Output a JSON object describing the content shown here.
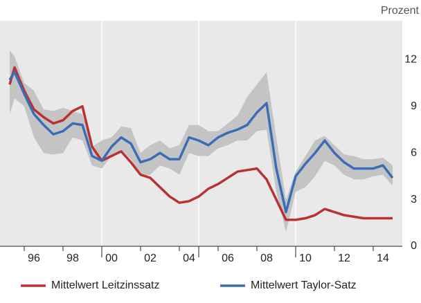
{
  "chart_data": {
    "type": "line",
    "y_axis_label": "Prozent",
    "x": [
      1995.25,
      1995.5,
      1996,
      1996.5,
      1997,
      1997.5,
      1998,
      1998.5,
      1999,
      1999.5,
      2000,
      2000.5,
      2001,
      2001.5,
      2002,
      2002.5,
      2003,
      2003.5,
      2004,
      2004.5,
      2005,
      2005.5,
      2006,
      2006.5,
      2007,
      2007.5,
      2008,
      2008.5,
      2009,
      2009.5,
      2010,
      2010.5,
      2011,
      2011.5,
      2012,
      2012.5,
      2013,
      2013.5,
      2014,
      2014.5,
      2015
    ],
    "series": [
      {
        "name": "Mittelwert Leitzinssatz",
        "color": "#b83232",
        "values": [
          10.4,
          11.5,
          10.0,
          8.8,
          8.3,
          7.9,
          8.1,
          8.7,
          9.0,
          6.4,
          5.5,
          5.8,
          6.1,
          5.4,
          4.6,
          4.4,
          3.8,
          3.2,
          2.8,
          2.9,
          3.2,
          3.7,
          4.0,
          4.4,
          4.8,
          4.9,
          5.0,
          4.3,
          3.0,
          1.7,
          1.7,
          1.8,
          2.0,
          2.4,
          2.2,
          2.0,
          1.9,
          1.8,
          1.8,
          1.8,
          1.8
        ]
      },
      {
        "name": "Mittelwert Taylor-Satz",
        "color": "#3a6db5",
        "values": [
          10.7,
          11.2,
          9.8,
          8.5,
          7.8,
          7.2,
          7.4,
          7.9,
          7.8,
          5.8,
          5.5,
          6.4,
          7.0,
          6.6,
          5.4,
          5.6,
          6.0,
          5.6,
          5.6,
          7.0,
          6.8,
          6.5,
          7.0,
          7.3,
          7.5,
          7.8,
          8.6,
          9.2,
          5.0,
          2.2,
          4.5,
          5.3,
          6.0,
          6.8,
          6.0,
          5.4,
          5.0,
          5.0,
          5.0,
          5.2,
          4.4
        ]
      }
    ],
    "band": {
      "color": "#c4c4c4",
      "low": [
        8.5,
        9.5,
        9.0,
        7.0,
        6.0,
        5.9,
        6.0,
        7.0,
        6.8,
        5.2,
        5.0,
        5.8,
        6.2,
        5.6,
        4.5,
        4.6,
        5.2,
        5.0,
        4.6,
        6.0,
        5.8,
        5.8,
        6.3,
        6.5,
        6.8,
        6.8,
        7.4,
        7.5,
        3.5,
        0.9,
        3.5,
        3.8,
        4.5,
        5.5,
        5.2,
        4.6,
        4.3,
        4.3,
        4.5,
        4.6,
        3.9
      ],
      "high": [
        12.6,
        12.2,
        10.5,
        10.0,
        8.8,
        8.7,
        8.9,
        8.7,
        8.5,
        6.4,
        6.8,
        7.0,
        7.7,
        7.6,
        6.0,
        6.5,
        6.8,
        6.3,
        6.5,
        7.8,
        7.8,
        7.4,
        7.4,
        7.9,
        8.4,
        9.6,
        10.4,
        11.2,
        7.0,
        3.0,
        4.8,
        5.8,
        6.8,
        7.1,
        6.5,
        5.9,
        5.8,
        5.6,
        5.6,
        5.7,
        5.2
      ]
    },
    "xlim": [
      1994.75,
      2015.5
    ],
    "xticks": [
      {
        "value": 1996.5,
        "label": "96"
      },
      {
        "value": 1998.5,
        "label": "98"
      },
      {
        "value": 2000.5,
        "label": "00"
      },
      {
        "value": 2002.5,
        "label": "02"
      },
      {
        "value": 2004.5,
        "label": "04"
      },
      {
        "value": 2006.5,
        "label": "06"
      },
      {
        "value": 2008.5,
        "label": "08"
      },
      {
        "value": 2010.5,
        "label": "10"
      },
      {
        "value": 2012.5,
        "label": "12"
      },
      {
        "value": 2014.5,
        "label": "14"
      }
    ],
    "xminor": [
      1996,
      1998,
      2000,
      2002,
      2004,
      2006,
      2008,
      2010,
      2012,
      2014
    ],
    "xgrid": [
      2000,
      2005,
      2010
    ],
    "ylim": [
      0,
      14.5
    ],
    "yticks": [
      0,
      3,
      6,
      9,
      12
    ],
    "background": "#e9e9e9"
  }
}
